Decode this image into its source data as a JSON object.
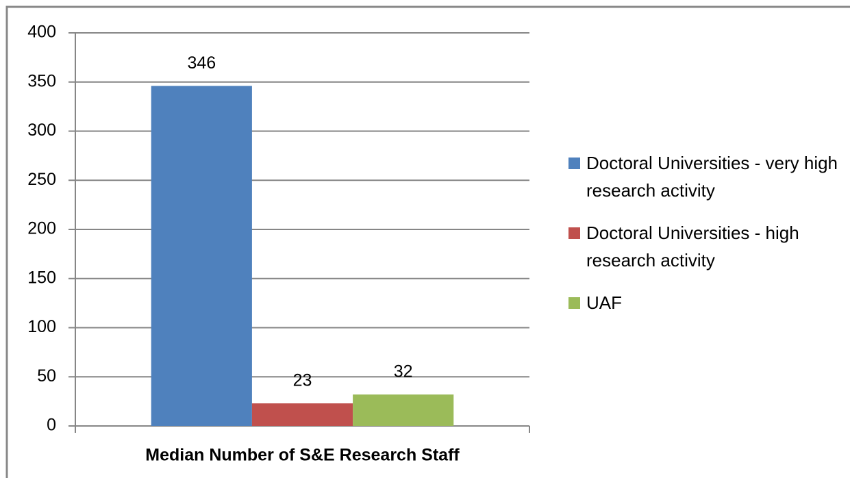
{
  "chart_data": {
    "type": "bar",
    "categories": [
      "Median Number of S&E Research Staff"
    ],
    "series": [
      {
        "name": "Doctoral Universities - very high research activity",
        "color": "#4f81bd",
        "values": [
          346
        ]
      },
      {
        "name": "Doctoral Universities - high research activity",
        "color": "#c0504d",
        "values": [
          23
        ]
      },
      {
        "name": "UAF",
        "color": "#9bbb59",
        "values": [
          32
        ]
      }
    ],
    "ylim": [
      0,
      400
    ],
    "yticks": [
      0,
      50,
      100,
      150,
      200,
      250,
      300,
      350,
      400
    ],
    "grid": true,
    "legend": "right"
  }
}
